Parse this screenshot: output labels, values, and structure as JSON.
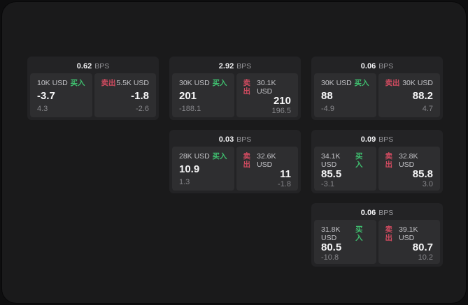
{
  "colors": {
    "buy_green": "#3fbf6f",
    "sell_red": "#d14b60",
    "window_bg": "#1a1a1b",
    "card_bg": "#232325",
    "panel_bg": "#2e2e30"
  },
  "labels": {
    "bps": "BPS",
    "buy": "买入",
    "sell": "卖出"
  },
  "cards": [
    {
      "bps": "0.62",
      "buy": {
        "amount": "10K USD",
        "value": "-3.7",
        "sub": "4.3"
      },
      "sell": {
        "amount": "5.5K USD",
        "value": "-1.8",
        "sub": "-2.6"
      }
    },
    {
      "bps": "2.92",
      "buy": {
        "amount": "30K USD",
        "value": "201",
        "sub": "-188.1"
      },
      "sell": {
        "amount": "30.1K USD",
        "value": "210",
        "sub": "196.5"
      }
    },
    {
      "bps": "0.06",
      "buy": {
        "amount": "30K USD",
        "value": "88",
        "sub": "-4.9"
      },
      "sell": {
        "amount": "30K USD",
        "value": "88.2",
        "sub": "4.7"
      }
    },
    {
      "bps": "0.03",
      "buy": {
        "amount": "28K USD",
        "value": "10.9",
        "sub": "1.3"
      },
      "sell": {
        "amount": "32.6K USD",
        "value": "11",
        "sub": "-1.8"
      }
    },
    {
      "bps": "0.09",
      "buy": {
        "amount": "34.1K USD",
        "value": "85.5",
        "sub": "-3.1"
      },
      "sell": {
        "amount": "32.8K USD",
        "value": "85.8",
        "sub": "3.0"
      }
    },
    {
      "bps": "0.06",
      "buy": {
        "amount": "31.8K USD",
        "value": "80.5",
        "sub": "-10.8"
      },
      "sell": {
        "amount": "39.1K USD",
        "value": "80.7",
        "sub": "10.2"
      }
    }
  ]
}
